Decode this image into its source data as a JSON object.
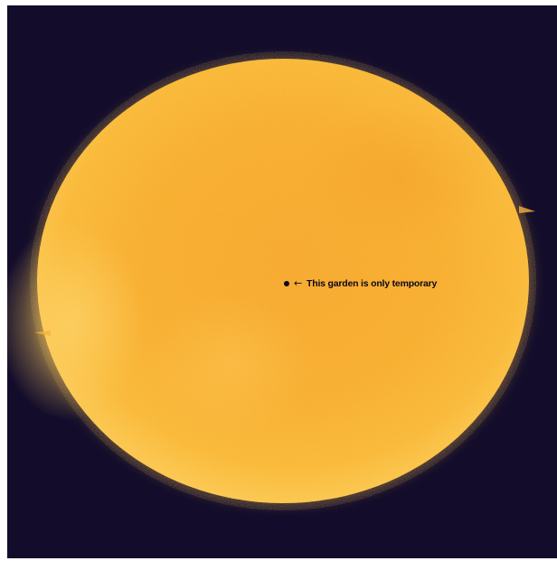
{
  "scene": {
    "background_color": "#130d2b",
    "sun_color": "#f7a826",
    "sun_highlight_color": "#fcc955"
  },
  "annotation": {
    "marker_icon": "dot-icon",
    "arrow_icon": "left-arrow-icon",
    "arrow_glyph": "←",
    "text": "This garden is only temporary"
  }
}
